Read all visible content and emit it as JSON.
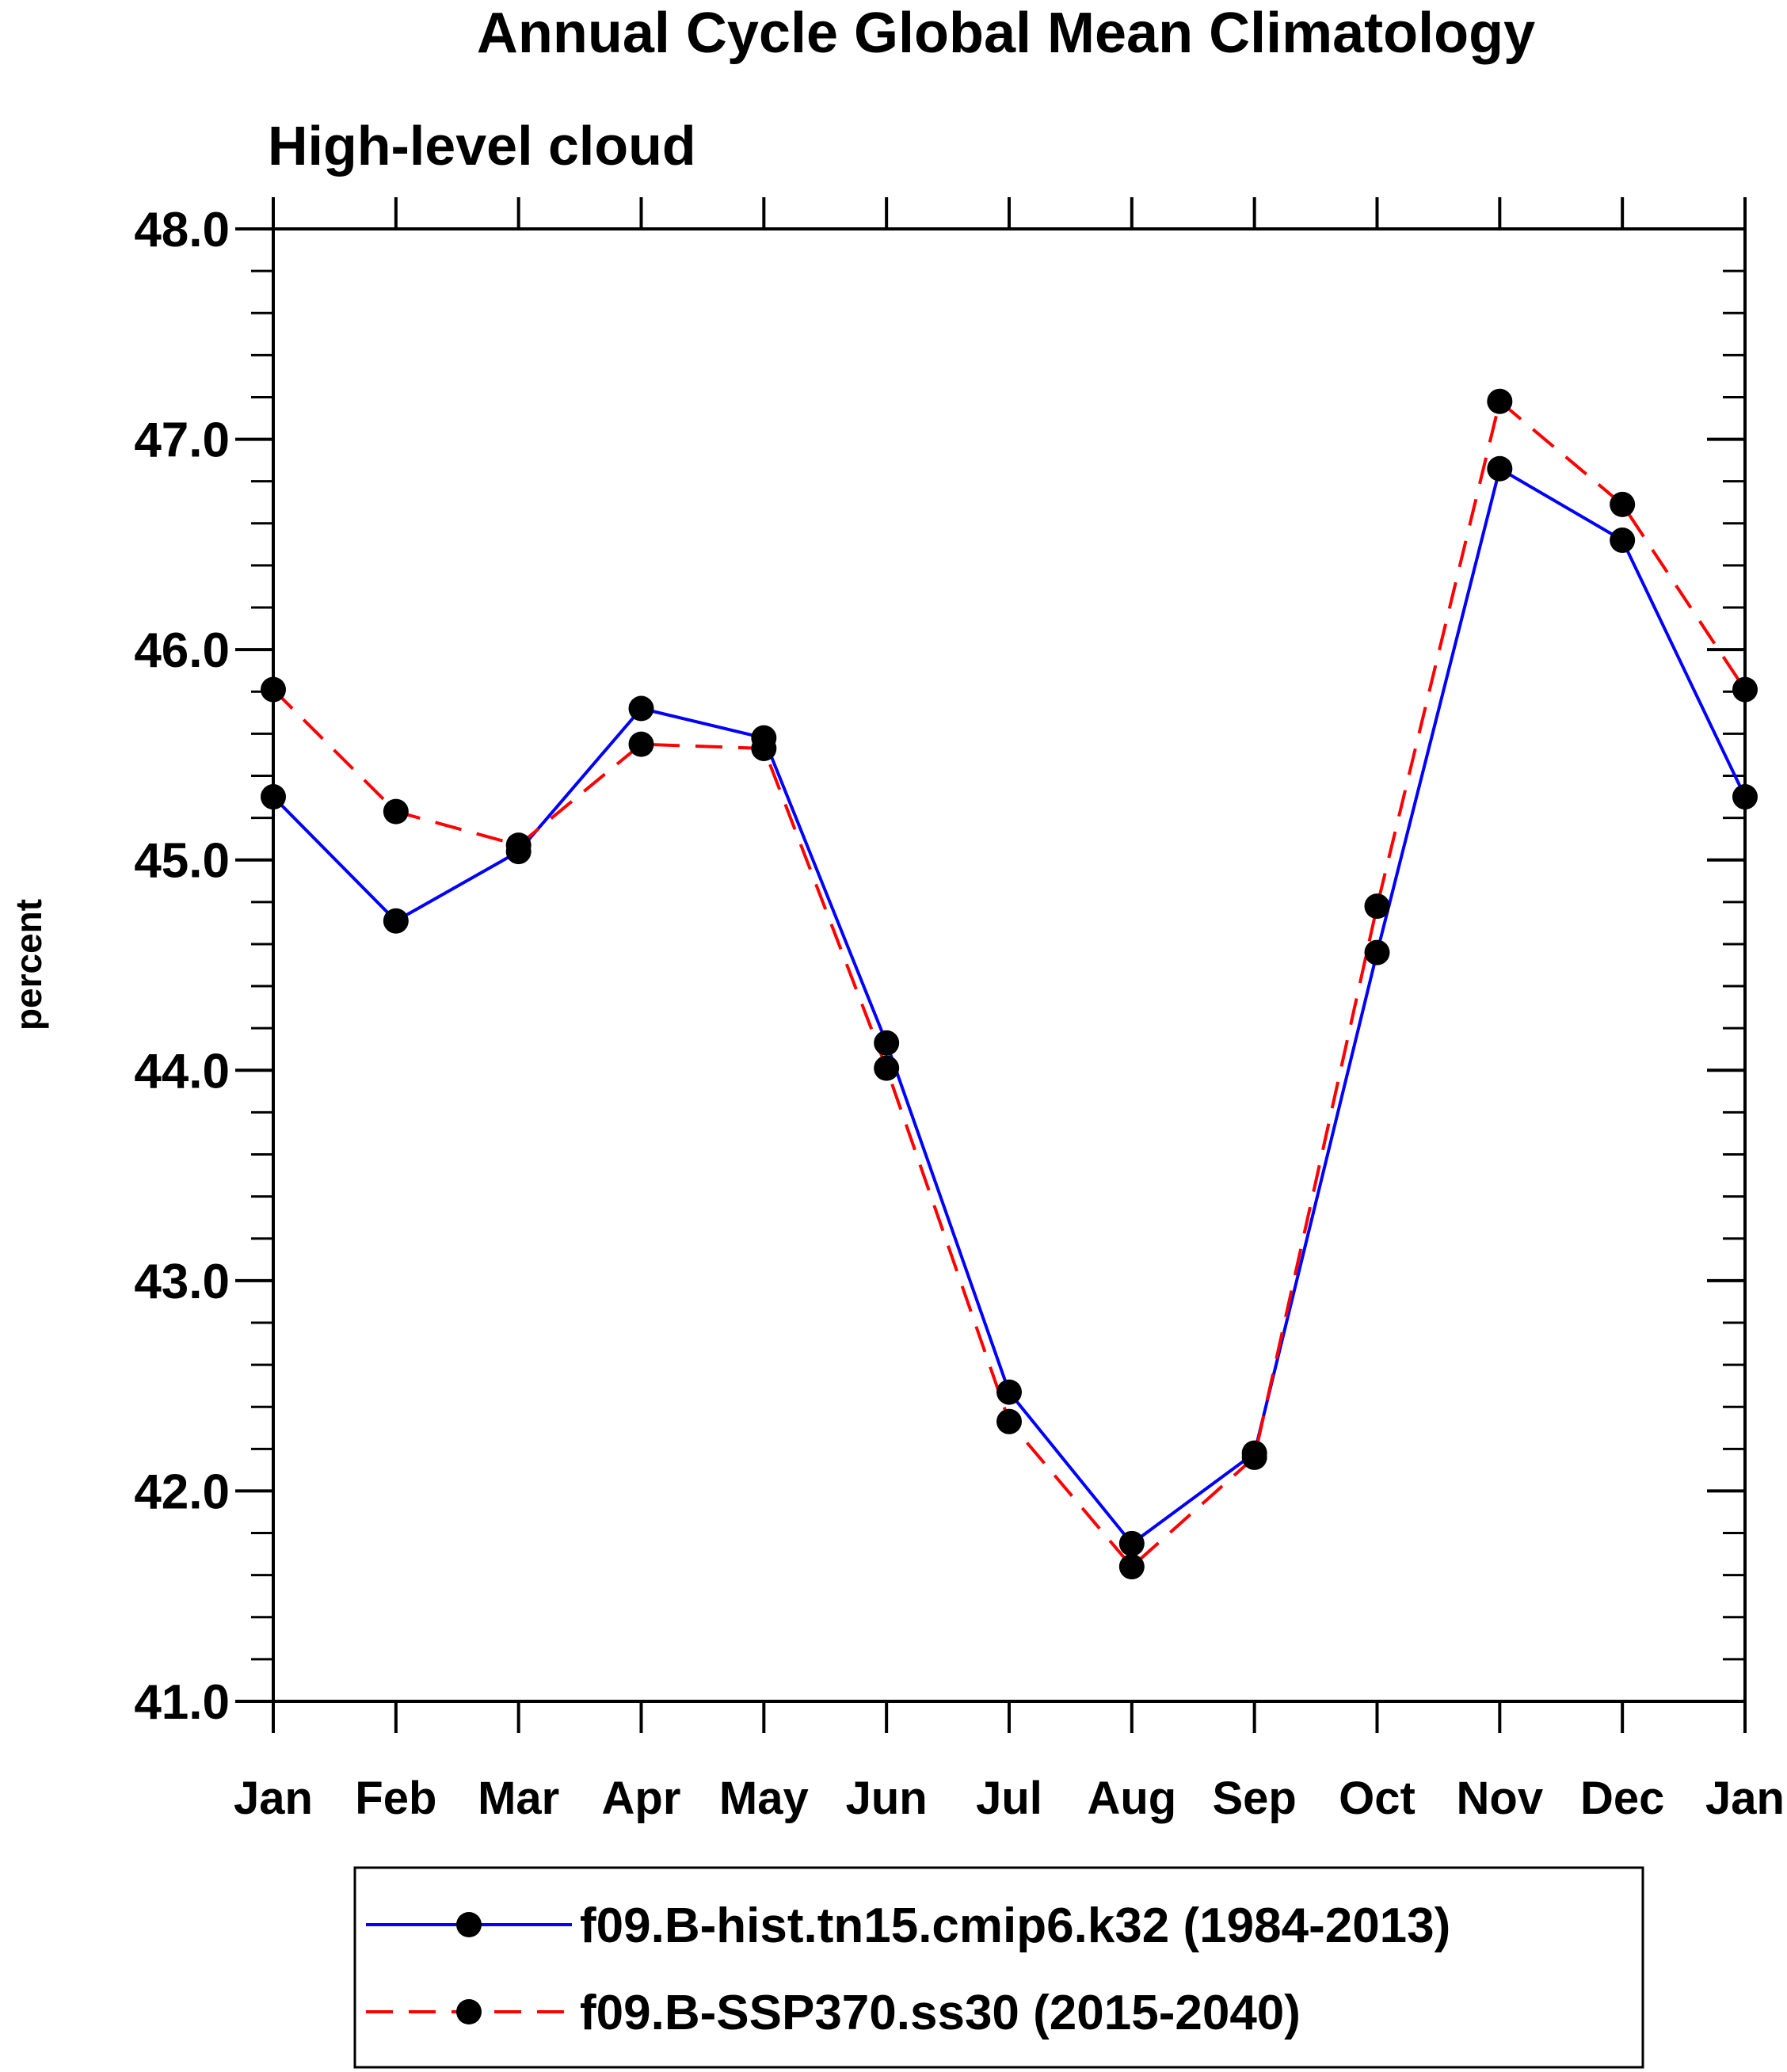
{
  "chart_data": {
    "type": "line",
    "title": "Annual Cycle Global Mean Climatology",
    "subtitle": "High-level cloud",
    "xlabel": "",
    "ylabel": "percent",
    "ylim": [
      41.0,
      48.0
    ],
    "y_ticks": [
      "41.0",
      "42.0",
      "43.0",
      "44.0",
      "45.0",
      "46.0",
      "47.0",
      "48.0"
    ],
    "y_minor_step": 0.2,
    "categories": [
      "Jan",
      "Feb",
      "Mar",
      "Apr",
      "May",
      "Jun",
      "Jul",
      "Aug",
      "Sep",
      "Oct",
      "Nov",
      "Dec",
      "Jan"
    ],
    "grid": false,
    "legend_position": "bottom",
    "series": [
      {
        "name": "f09.B-hist.tn15.cmip6.k32 (1984-2013)",
        "color": "#0000ff",
        "dashed": false,
        "values": [
          45.3,
          44.71,
          45.04,
          45.72,
          45.58,
          44.13,
          42.47,
          41.75,
          42.18,
          44.56,
          46.86,
          46.52,
          45.3
        ]
      },
      {
        "name": "f09.B-SSP370.ss30 (2015-2040)",
        "color": "#ff0000",
        "dashed": true,
        "values": [
          45.81,
          45.23,
          45.07,
          45.55,
          45.53,
          44.01,
          42.33,
          41.64,
          42.16,
          44.78,
          47.18,
          46.69,
          45.81
        ]
      }
    ]
  }
}
